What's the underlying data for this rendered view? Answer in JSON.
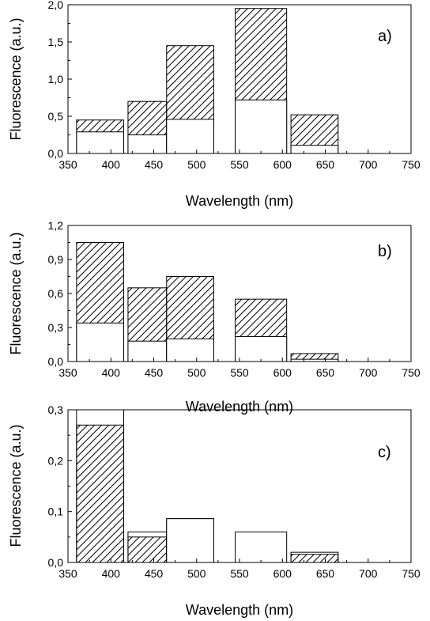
{
  "chart_data": [
    {
      "type": "bar",
      "panel_label": "a)",
      "xlabel": "Wavelength (nm)",
      "ylabel": "Fluorescence (a.u.)",
      "xlim": [
        350,
        750
      ],
      "ylim": [
        0,
        2.0
      ],
      "xticks": [
        "350",
        "400",
        "450",
        "500",
        "550",
        "600",
        "650",
        "700",
        "750"
      ],
      "yticks": [
        "0,0",
        "0,5",
        "1,0",
        "1,5",
        "2,0"
      ],
      "ytick_values": [
        0,
        0.5,
        1.0,
        1.5,
        2.0
      ],
      "bins": [
        [
          360,
          415
        ],
        [
          420,
          465
        ],
        [
          465,
          520
        ],
        [
          545,
          605
        ],
        [
          610,
          665
        ]
      ],
      "series": [
        {
          "pattern": "hatched",
          "values": [
            0.45,
            0.7,
            1.45,
            1.95,
            0.52
          ]
        },
        {
          "pattern": "open",
          "values": [
            0.29,
            0.25,
            0.46,
            0.72,
            0.11
          ]
        }
      ],
      "grid": false,
      "legend": "none"
    },
    {
      "type": "bar",
      "panel_label": "b)",
      "xlabel": "Wavelength (nm)",
      "ylabel": "Fluorescence (a.u.)",
      "xlim": [
        350,
        750
      ],
      "ylim": [
        0,
        1.2
      ],
      "xticks": [
        "350",
        "400",
        "450",
        "500",
        "550",
        "600",
        "650",
        "700",
        "750"
      ],
      "yticks": [
        "0,0",
        "0,3",
        "0,6",
        "0,9",
        "1,2"
      ],
      "ytick_values": [
        0,
        0.3,
        0.6,
        0.9,
        1.2
      ],
      "bins": [
        [
          360,
          415
        ],
        [
          420,
          465
        ],
        [
          465,
          520
        ],
        [
          545,
          605
        ],
        [
          610,
          665
        ]
      ],
      "series": [
        {
          "pattern": "hatched",
          "values": [
            1.05,
            0.65,
            0.75,
            0.55,
            0.07
          ]
        },
        {
          "pattern": "open",
          "values": [
            0.34,
            0.18,
            0.2,
            0.22,
            0.02
          ]
        }
      ],
      "grid": false,
      "legend": "none"
    },
    {
      "type": "bar",
      "panel_label": "c)",
      "xlabel": "Wavelength (nm)",
      "ylabel": "Fluorescence (a.u.)",
      "xlim": [
        350,
        750
      ],
      "ylim": [
        0,
        0.3
      ],
      "xticks": [
        "350",
        "400",
        "450",
        "500",
        "550",
        "600",
        "650",
        "700",
        "750"
      ],
      "yticks": [
        "0,0",
        "0,1",
        "0,2",
        "0,3"
      ],
      "ytick_values": [
        0,
        0.1,
        0.2,
        0.3
      ],
      "bins": [
        [
          360,
          415
        ],
        [
          420,
          465
        ],
        [
          465,
          520
        ],
        [
          545,
          605
        ],
        [
          610,
          665
        ]
      ],
      "series": [
        {
          "pattern": "hatched",
          "values": [
            0.27,
            0.05,
            0.086,
            0.0,
            0.016
          ]
        },
        {
          "pattern": "open",
          "values": [
            0.3,
            0.06,
            0.086,
            0.06,
            0.02
          ]
        }
      ],
      "grid": false,
      "legend": "none"
    }
  ]
}
